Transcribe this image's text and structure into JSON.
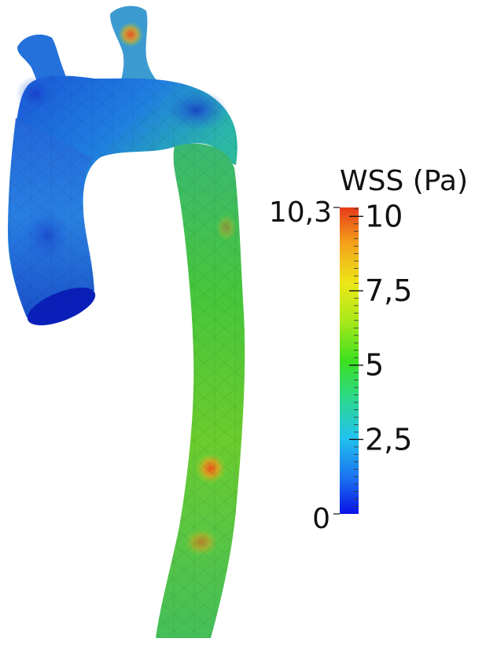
{
  "legend": {
    "title": "WSS (Pa)",
    "range_min_label": "0",
    "range_max_label": "10,3",
    "tick_labels": [
      "10",
      "7,5",
      "5",
      "2,5"
    ],
    "range": [
      0,
      10.3
    ],
    "ticks": [
      10,
      7.5,
      5,
      2.5
    ],
    "colormap": [
      "#0a12e6",
      "#1b74f0",
      "#22c3ee",
      "#2dd98a",
      "#3ce01e",
      "#a9e81a",
      "#ece818",
      "#f4a41a",
      "#e83a1a"
    ]
  },
  "colors": {
    "background": "#ffffff",
    "vessel_low": "#1a4fd8",
    "vessel_mid": "#27b7a0",
    "vessel_high": "#55c832",
    "hotspot": "#e8641a"
  }
}
